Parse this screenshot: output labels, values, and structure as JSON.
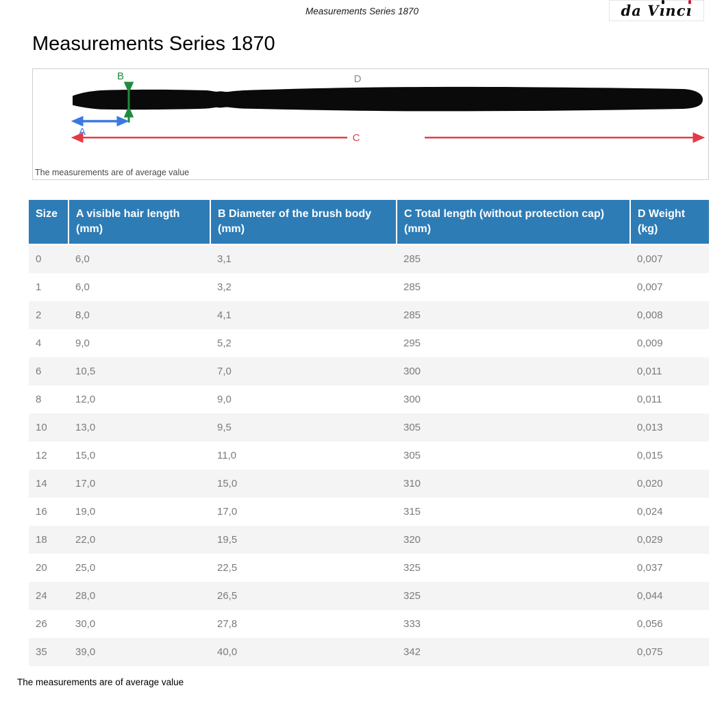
{
  "topbar": {
    "doc_title": "Measurements Series 1870"
  },
  "brand": {
    "name": "da Vinci",
    "prefix": "da V",
    "mid": "nc",
    "i_char": "ı",
    "dot_color": "#d9123b"
  },
  "title": "Measurements Series 1870",
  "diagram": {
    "labels": {
      "a": "A",
      "b": "B",
      "c": "C",
      "d": "D"
    },
    "colors": {
      "a_blue": "#3b79e1",
      "b_green": "#1f8b3c",
      "c_red": "#e23c46",
      "d_gray": "#8b8b8b",
      "brush_black": "#0a0a0a"
    },
    "caption": "The measurements are of average value"
  },
  "table": {
    "header_bg": "#2e7cb6",
    "row_stripe": "#f4f4f5",
    "columns": [
      "Size",
      "A visible hair length (mm)",
      "B Diameter of the brush body (mm)",
      "C Total length (without protection cap) (mm)",
      "D Weight (kg)"
    ],
    "rows": [
      [
        "0",
        "6,0",
        "3,1",
        "285",
        "0,007"
      ],
      [
        "1",
        "6,0",
        "3,2",
        "285",
        "0,007"
      ],
      [
        "2",
        "8,0",
        "4,1",
        "285",
        "0,008"
      ],
      [
        "4",
        "9,0",
        "5,2",
        "295",
        "0,009"
      ],
      [
        "6",
        "10,5",
        "7,0",
        "300",
        "0,011"
      ],
      [
        "8",
        "12,0",
        "9,0",
        "300",
        "0,011"
      ],
      [
        "10",
        "13,0",
        "9,5",
        "305",
        "0,013"
      ],
      [
        "12",
        "15,0",
        "11,0",
        "305",
        "0,015"
      ],
      [
        "14",
        "17,0",
        "15,0",
        "310",
        "0,020"
      ],
      [
        "16",
        "19,0",
        "17,0",
        "315",
        "0,024"
      ],
      [
        "18",
        "22,0",
        "19,5",
        "320",
        "0,029"
      ],
      [
        "20",
        "25,0",
        "22,5",
        "325",
        "0,037"
      ],
      [
        "24",
        "28,0",
        "26,5",
        "325",
        "0,044"
      ],
      [
        "26",
        "30,0",
        "27,8",
        "333",
        "0,056"
      ],
      [
        "35",
        "39,0",
        "40,0",
        "342",
        "0,075"
      ]
    ]
  },
  "footer": {
    "note": "The measurements are of average value"
  }
}
